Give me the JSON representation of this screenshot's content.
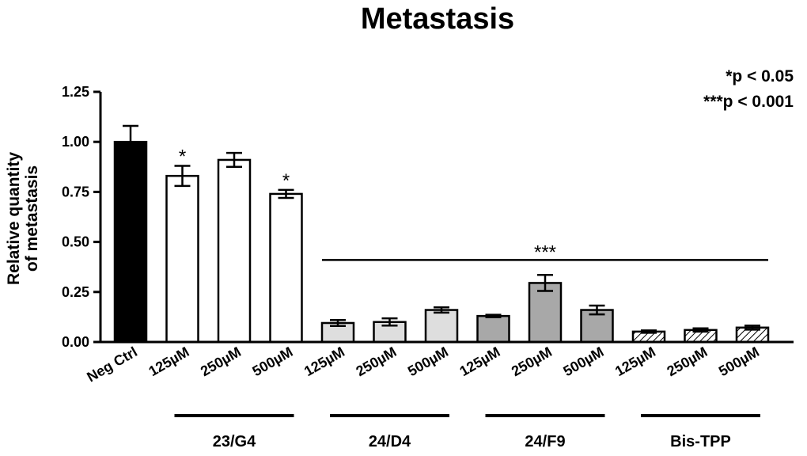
{
  "chart_data": {
    "type": "bar",
    "title": "Metastasis",
    "ylabel_lines": [
      "Relative quantity",
      "of metastasis"
    ],
    "ylim": [
      0,
      1.25
    ],
    "yticks": [
      "0.00",
      "0.25",
      "0.50",
      "0.75",
      "1.00",
      "1.25"
    ],
    "ytick_values": [
      0,
      0.25,
      0.5,
      0.75,
      1.0,
      1.25
    ],
    "categories": [
      "Neg Ctrl",
      "125µM",
      "250µM",
      "500µM",
      "125µM",
      "250µM",
      "500µM",
      "125µM",
      "250µM",
      "500µM",
      "125µM",
      "250µM",
      "500µM"
    ],
    "values": [
      1.0,
      0.83,
      0.91,
      0.74,
      0.095,
      0.1,
      0.16,
      0.13,
      0.295,
      0.16,
      0.052,
      0.06,
      0.072
    ],
    "errors": [
      0.08,
      0.05,
      0.035,
      0.02,
      0.015,
      0.018,
      0.013,
      0.006,
      0.04,
      0.022,
      0.006,
      0.008,
      0.01
    ],
    "fills": [
      "black",
      "white",
      "white",
      "white",
      "lightgray",
      "lightgray",
      "lightgray",
      "darkgray",
      "darkgray",
      "darkgray",
      "hatched",
      "hatched",
      "hatched"
    ],
    "colors": {
      "black": "#000000",
      "white": "#ffffff",
      "lightgray": "#dedede",
      "darkgray": "#a8a8a8"
    },
    "significance": [
      "",
      "*",
      "",
      "*",
      "",
      "",
      "",
      "",
      "",
      "",
      "",
      "",
      ""
    ],
    "groups": [
      {
        "label": "23/G4",
        "from": 1,
        "to": 3
      },
      {
        "label": "24/D4",
        "from": 4,
        "to": 6
      },
      {
        "label": "24/F9",
        "from": 7,
        "to": 9
      },
      {
        "label": "Bis-TPP",
        "from": 10,
        "to": 12
      }
    ],
    "bracket": {
      "label": "***",
      "y": 0.41,
      "from": 4,
      "to": 12
    },
    "legend": [
      "*p < 0.05",
      "***p < 0.001"
    ]
  }
}
